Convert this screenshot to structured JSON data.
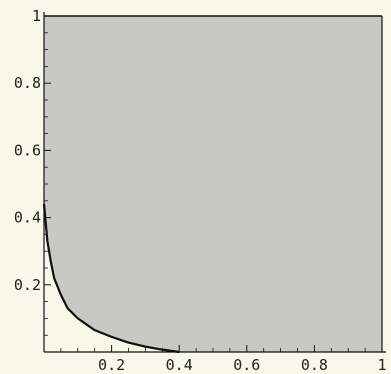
{
  "chart_data": {
    "type": "area",
    "title": "",
    "xlabel": "",
    "ylabel": "",
    "xlim": [
      0,
      1
    ],
    "ylim": [
      0,
      1
    ],
    "x_ticks": [
      {
        "value": 0.2,
        "label": "0.2"
      },
      {
        "value": 0.4,
        "label": "0.4"
      },
      {
        "value": 0.6,
        "label": "0.6"
      },
      {
        "value": 0.8,
        "label": "0.8"
      },
      {
        "value": 1.0,
        "label": "1"
      }
    ],
    "y_ticks": [
      {
        "value": 0.2,
        "label": "0.2"
      },
      {
        "value": 0.4,
        "label": "0.4"
      },
      {
        "value": 0.6,
        "label": "0.6"
      },
      {
        "value": 0.8,
        "label": "0.8"
      },
      {
        "value": 1.0,
        "label": "1"
      }
    ],
    "region_fill": "#c9c9c3",
    "boundary_color": "#111111",
    "grid": false,
    "series": [
      {
        "x": [
          0.0,
          0.01,
          0.02,
          0.03,
          0.05,
          0.07,
          0.1,
          0.15,
          0.2,
          0.25,
          0.3,
          0.35,
          0.4
        ],
        "y": [
          0.44,
          0.33,
          0.27,
          0.22,
          0.17,
          0.13,
          0.1,
          0.065,
          0.045,
          0.028,
          0.016,
          0.007,
          0.0
        ]
      }
    ]
  }
}
